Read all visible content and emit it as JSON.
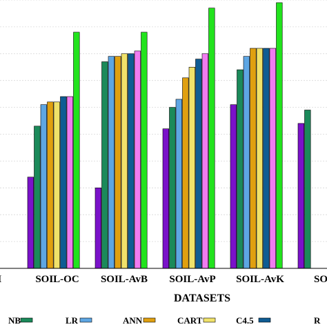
{
  "chart_data": {
    "type": "bar",
    "title": "",
    "xlabel": "DATASETS",
    "ylabel": "",
    "ylim": [
      0,
      100
    ],
    "grid": true,
    "legend_position": "bottom",
    "categories": [
      "...H",
      "SOIL-OC",
      "SOIL-AvB",
      "SOIL-AvP",
      "SOIL-AvK",
      "SOIL..."
    ],
    "series": [
      {
        "name": "NB",
        "color": "#7a12c9",
        "values": [
          null,
          34,
          30,
          52,
          61,
          54
        ]
      },
      {
        "name": "",
        "color": "#1b8a5a",
        "values": [
          null,
          53,
          77,
          60,
          74,
          59
        ]
      },
      {
        "name": "LR",
        "color": "#5ea6e3",
        "values": [
          null,
          61,
          79,
          63,
          79,
          null
        ]
      },
      {
        "name": "ANN",
        "color": "#e0a010",
        "values": [
          null,
          62,
          79,
          71,
          82,
          null
        ]
      },
      {
        "name": "CART",
        "color": "#f0e26a",
        "values": [
          null,
          62,
          80,
          75,
          82,
          null
        ]
      },
      {
        "name": "C4.5",
        "color": "#0f5c93",
        "values": [
          null,
          64,
          80,
          78,
          82,
          null
        ]
      },
      {
        "name": "",
        "color": "#f07cf0",
        "values": [
          90,
          64,
          81,
          80,
          82,
          null
        ]
      },
      {
        "name": "R...",
        "color": "#22e31d",
        "values": [
          97,
          88,
          88,
          97,
          99,
          null
        ]
      }
    ]
  }
}
